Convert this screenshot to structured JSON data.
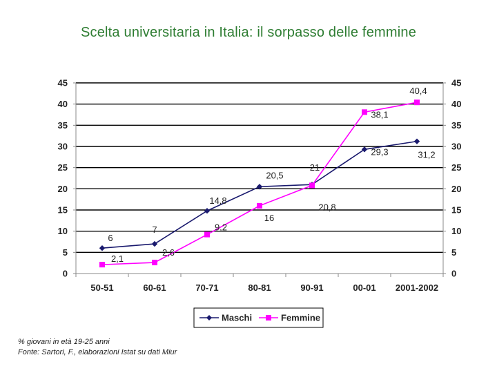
{
  "title": "Scelta universitaria in Italia: il sorpasso delle femmine",
  "footnote": {
    "line1": "% giovani in età 19-25 anni",
    "line2": "Fonte: Sartori, F., elaborazioni Istat su dati Miur"
  },
  "chart_data": {
    "type": "line",
    "title": "Scelta universitaria in Italia: il sorpasso delle femmine",
    "categories": [
      "50-51",
      "60-61",
      "70-71",
      "80-81",
      "90-91",
      "00-01",
      "2001-2002"
    ],
    "ylim": [
      0,
      45
    ],
    "yticks": [
      "0",
      "5",
      "10",
      "15",
      "20",
      "25",
      "30",
      "35",
      "40",
      "45"
    ],
    "grid": true,
    "legend": "bottom",
    "series": [
      {
        "name": "Maschi",
        "color": "#1a1a6e",
        "marker": "diamond",
        "values": [
          6,
          7,
          14.8,
          20.5,
          21,
          29.3,
          31.2
        ],
        "labels": [
          "6",
          "7",
          "14,8",
          "20,5",
          "21",
          "29,3",
          "31,2"
        ]
      },
      {
        "name": "Femmine",
        "color": "#ff00ff",
        "marker": "square",
        "values": [
          2.1,
          2.6,
          9.2,
          16,
          20.8,
          38.1,
          40.4
        ],
        "labels": [
          "2,1",
          "2,6",
          "9,2",
          "16",
          "20,8",
          "38,1",
          "40,4"
        ]
      }
    ]
  }
}
